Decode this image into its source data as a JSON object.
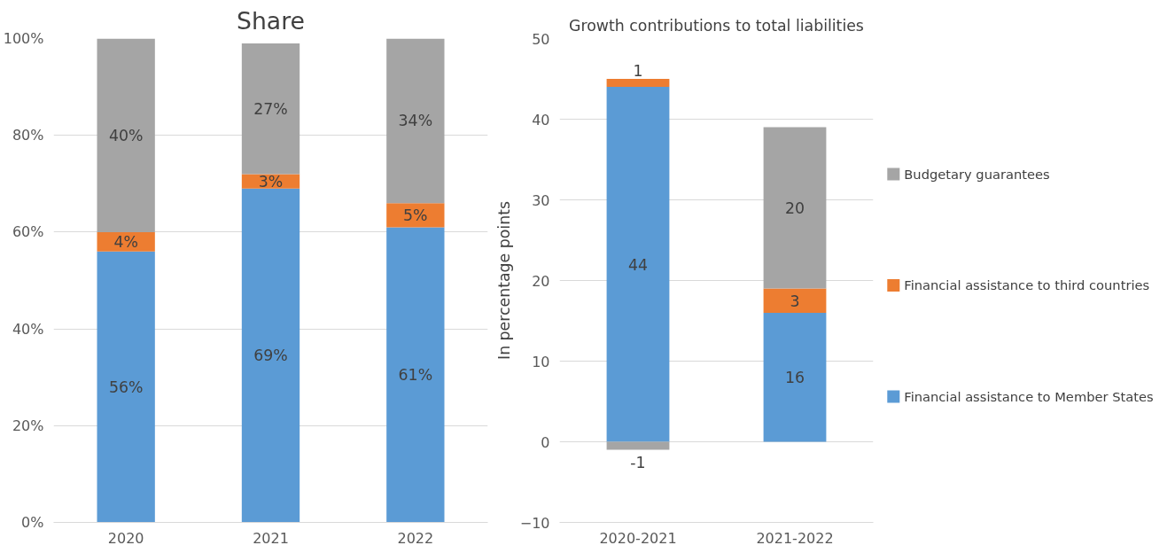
{
  "chart_data": [
    {
      "type": "bar",
      "title": "Share",
      "stacked": true,
      "categories": [
        "2020",
        "2021",
        "2022"
      ],
      "series": [
        {
          "color": "#5b9bd5",
          "values": [
            56,
            69,
            61
          ],
          "value_labels": [
            "56%",
            "69%",
            "61%"
          ]
        },
        {
          "color": "#ed7d31",
          "values": [
            4,
            3,
            5
          ],
          "value_labels": [
            "4%",
            "3%",
            "5%"
          ]
        },
        {
          "color": "#a5a5a5",
          "values": [
            40,
            27,
            34
          ],
          "value_labels": [
            "40%",
            "27%",
            "34%"
          ]
        }
      ],
      "ylim": [
        0,
        100
      ],
      "yticks": [
        {
          "value": 0,
          "label": "0%"
        },
        {
          "value": 20,
          "label": "20%"
        },
        {
          "value": 40,
          "label": "40%"
        },
        {
          "value": 60,
          "label": "60%"
        },
        {
          "value": 80,
          "label": "80%"
        },
        {
          "value": 100,
          "label": "100%"
        }
      ],
      "grid": "y"
    },
    {
      "type": "bar",
      "title": "Growth contributions to total liabilities",
      "ylabel": "In percentage points",
      "stacked": true,
      "categories": [
        "2020-2021",
        "2021-2022"
      ],
      "series": [
        {
          "name": "Financial assistance to Member States",
          "color": "#5b9bd5",
          "values": [
            44,
            16
          ]
        },
        {
          "name": "Financial assistance to third countries",
          "color": "#ed7d31",
          "values": [
            1,
            3
          ]
        },
        {
          "name": "Budgetary guarantees",
          "color": "#a5a5a5",
          "values": [
            -1,
            20
          ]
        }
      ],
      "data_labels": true,
      "ylim": [
        -10,
        50
      ],
      "yticks": [
        -10,
        0,
        10,
        20,
        30,
        40,
        50
      ],
      "grid": "y",
      "legend": "right"
    }
  ]
}
